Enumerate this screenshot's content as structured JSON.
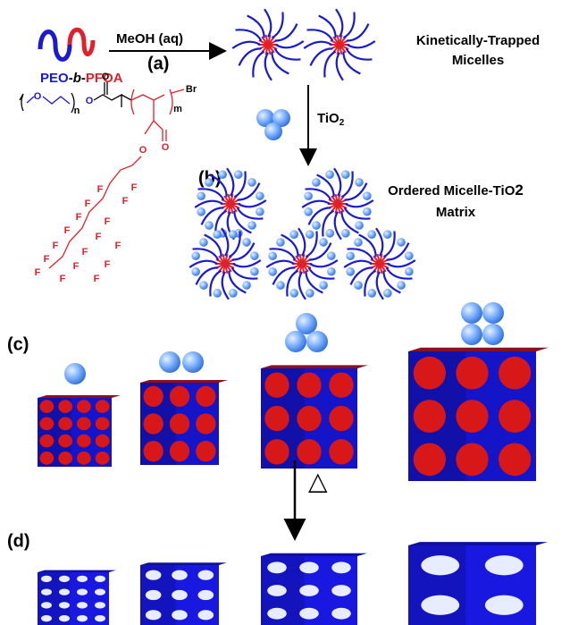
{
  "polymer": {
    "parts": [
      "PEO",
      "-",
      "b",
      "-",
      "PFOA"
    ]
  },
  "step_a": {
    "reagent": "MeOH (aq)",
    "label": "(a)"
  },
  "micelles_label": [
    "Kinetically-Trapped",
    "Micelles"
  ],
  "additive": {
    "formula": "TiO",
    "subscript": "2"
  },
  "step_b": {
    "label": "(b)"
  },
  "matrix_label": {
    "line1": "Ordered Micelle-TiO",
    "subscript": "2",
    "line2": "Matrix"
  },
  "step_c": {
    "label": "(c)"
  },
  "heat": {
    "symbol": "△"
  },
  "step_d": {
    "label": "(d)"
  },
  "structure": {
    "atoms": [
      "O",
      "n",
      "O",
      "O",
      "Br",
      "m",
      "O",
      "O",
      "F",
      "F",
      "F",
      "F",
      "F",
      "F",
      "F",
      "F",
      "F",
      "F",
      "F",
      "F",
      "F",
      "F",
      "F",
      "F",
      "F"
    ]
  }
}
